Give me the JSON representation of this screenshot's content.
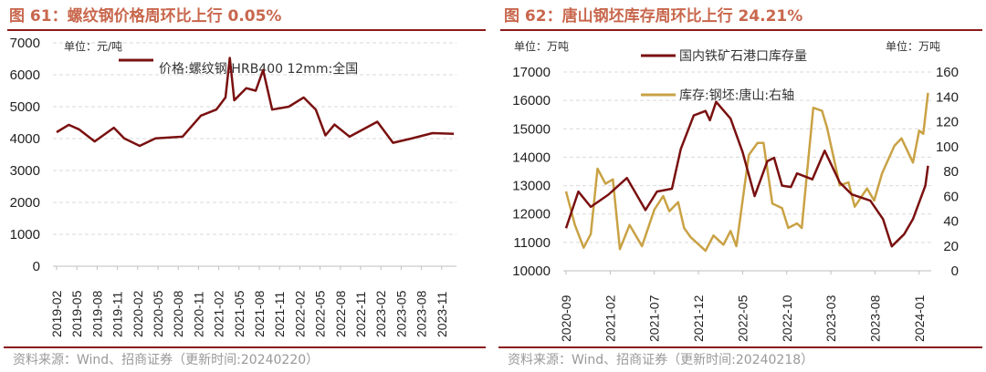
{
  "colors": {
    "title": "#c8674d",
    "rule": "#8b1a1a",
    "series_red": "#7a1010",
    "series_gold": "#c9a245"
  },
  "chart_data": [
    {
      "type": "line",
      "title": "图 61：螺纹钢价格周环比上行 0.05%",
      "unit": "单位：元/吨",
      "ylim": [
        0,
        7000
      ],
      "yticks": [
        "0",
        "1000",
        "2000",
        "3000",
        "4000",
        "5000",
        "6000",
        "7000"
      ],
      "xticks": [
        "2019-02",
        "2019-05",
        "2019-08",
        "2019-11",
        "2020-02",
        "2020-05",
        "2020-08",
        "2020-11",
        "2021-02",
        "2021-05",
        "2021-08",
        "2021-11",
        "2022-02",
        "2022-05",
        "2022-08",
        "2022-11",
        "2023-02",
        "2023-05",
        "2023-08",
        "2023-11"
      ],
      "grid": true,
      "legend_placement": "top",
      "source": "资料来源：Wind、招商证券（更新时间:20240220）",
      "series": [
        {
          "name": "价格:螺纹钢:HRB400 12mm:全国",
          "color": "#7a1010",
          "x": [
            "2019-02-01",
            "2019-03-25",
            "2019-05-10",
            "2019-07-20",
            "2019-10-15",
            "2019-12-01",
            "2020-02-10",
            "2020-04-20",
            "2020-08-20",
            "2020-11-12",
            "2021-01-20",
            "2021-03-01",
            "2021-03-20",
            "2021-04-10",
            "2021-06-03",
            "2021-07-15",
            "2021-08-18",
            "2021-09-28",
            "2021-12-12",
            "2022-02-18",
            "2022-04-12",
            "2022-05-25",
            "2022-07-05",
            "2022-09-12",
            "2023-01-15",
            "2023-03-25",
            "2023-06-15",
            "2023-09-20",
            "2023-12-25"
          ],
          "y": [
            4200,
            4430,
            4290,
            3910,
            4340,
            4010,
            3770,
            4010,
            4060,
            4720,
            4910,
            5290,
            6530,
            5200,
            5580,
            5500,
            6150,
            4910,
            5000,
            5290,
            4910,
            4100,
            4440,
            4060,
            4530,
            3870,
            4000,
            4170,
            4150
          ]
        }
      ]
    },
    {
      "type": "line",
      "title": "图 62：唐山钢坯库存周环比上行 24.21%",
      "unit_left": "单位：万吨",
      "unit_right": "单位：万吨",
      "ylim_left": [
        10000,
        17000
      ],
      "ylim_right": [
        0,
        160
      ],
      "yticks_left": [
        "10000",
        "11000",
        "12000",
        "13000",
        "14000",
        "15000",
        "16000",
        "17000"
      ],
      "yticks_right": [
        "0",
        "20",
        "40",
        "60",
        "80",
        "100",
        "120",
        "140",
        "160"
      ],
      "xticks": [
        "2020-09",
        "2021-02",
        "2021-07",
        "2021-12",
        "2022-05",
        "2022-10",
        "2023-03",
        "2023-08",
        "2024-01"
      ],
      "grid": true,
      "legend_placement": "top",
      "source": "资料来源：Wind、招商证券（更新时间:20240218）",
      "series": [
        {
          "name": "国内铁矿石港口库存量",
          "axis": "left",
          "color": "#7a1010",
          "x": [
            "2020-09-01",
            "2020-10-13",
            "2020-11-25",
            "2021-01-25",
            "2021-03-28",
            "2021-06-01",
            "2021-07-10",
            "2021-09-01",
            "2021-10-01",
            "2021-11-15",
            "2021-12-25",
            "2022-01-10",
            "2022-02-01",
            "2022-03-20",
            "2022-05-01",
            "2022-06-12",
            "2022-07-25",
            "2022-08-18",
            "2022-09-15",
            "2022-10-15",
            "2022-11-06",
            "2022-12-28",
            "2023-02-10",
            "2023-04-01",
            "2023-05-12",
            "2023-07-15",
            "2023-08-28",
            "2023-09-28",
            "2023-11-10",
            "2023-12-10",
            "2024-01-22",
            "2024-02-01"
          ],
          "y": [
            11500,
            12790,
            12250,
            12680,
            13270,
            12140,
            12790,
            12890,
            14290,
            15470,
            15630,
            15300,
            15950,
            15360,
            14180,
            12630,
            13860,
            13980,
            13000,
            12950,
            13430,
            13220,
            14230,
            13110,
            12690,
            12470,
            11820,
            10860,
            11290,
            11820,
            13000,
            13700
          ]
        },
        {
          "name": "库存:钢坯:唐山:右轴",
          "axis": "right",
          "color": "#c9a245",
          "x": [
            "2020-09-01",
            "2020-10-01",
            "2020-11-01",
            "2020-11-25",
            "2020-12-18",
            "2021-01-15",
            "2021-02-10",
            "2021-03-04",
            "2021-04-07",
            "2021-05-19",
            "2021-07-01",
            "2021-08-01",
            "2021-08-22",
            "2021-09-22",
            "2021-10-12",
            "2021-11-04",
            "2021-12-25",
            "2022-01-22",
            "2022-02-26",
            "2022-03-20",
            "2022-04-10",
            "2022-05-22",
            "2022-06-22",
            "2022-07-12",
            "2022-08-12",
            "2022-09-15",
            "2022-10-06",
            "2022-11-06",
            "2022-11-22",
            "2023-01-01",
            "2023-02-01",
            "2023-02-18",
            "2023-04-01",
            "2023-05-01",
            "2023-05-22",
            "2023-07-04",
            "2023-07-28",
            "2023-08-25",
            "2023-10-07",
            "2023-11-01",
            "2023-12-10",
            "2024-01-01",
            "2024-01-15",
            "2024-02-01"
          ],
          "y": [
            63.9,
            36.9,
            18.6,
            29.6,
            82.2,
            70,
            73.6,
            17.4,
            36.9,
            19.8,
            49.2,
            60.2,
            47.9,
            55.3,
            34.5,
            27.2,
            16.1,
            28.4,
            21,
            32.1,
            19.8,
            93.2,
            103,
            103,
            54.1,
            50.4,
            34.5,
            38.2,
            34.5,
            131.2,
            128.7,
            115.2,
            68.8,
            71.2,
            51.6,
            66.3,
            56.5,
            78.5,
            100.6,
            106.6,
            87.1,
            112.8,
            110.3,
            143.3
          ]
        }
      ]
    }
  ]
}
